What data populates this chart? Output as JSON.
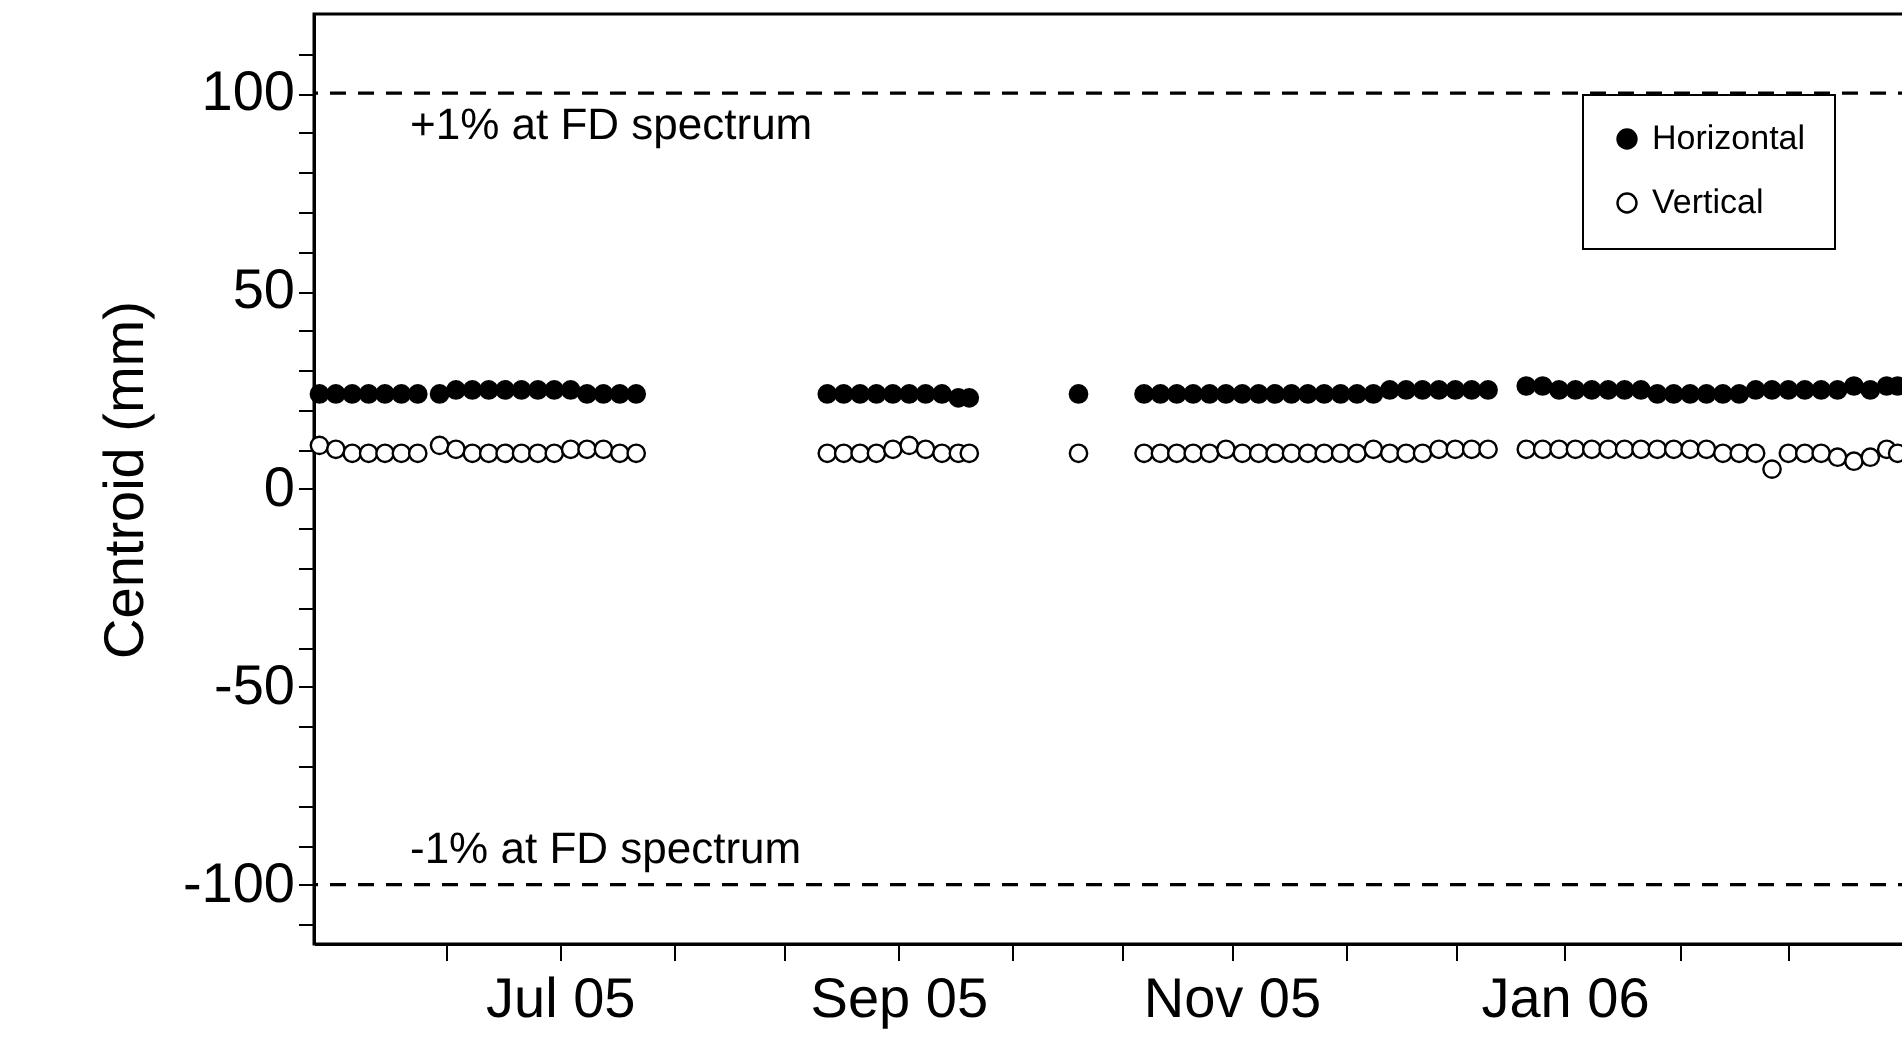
{
  "chart_data": {
    "type": "scatter",
    "ylabel": "Centroid (mm)",
    "x": [
      "2005-05-18",
      "2005-05-21",
      "2005-05-24",
      "2005-05-27",
      "2005-05-30",
      "2005-06-02",
      "2005-06-05",
      "2005-06-09",
      "2005-06-12",
      "2005-06-15",
      "2005-06-18",
      "2005-06-21",
      "2005-06-24",
      "2005-06-27",
      "2005-06-30",
      "2005-07-03",
      "2005-07-06",
      "2005-07-09",
      "2005-07-12",
      "2005-07-15",
      "2005-08-19",
      "2005-08-22",
      "2005-08-25",
      "2005-08-28",
      "2005-08-31",
      "2005-09-03",
      "2005-09-06",
      "2005-09-09",
      "2005-09-12",
      "2005-09-14",
      "2005-10-04",
      "2005-10-16",
      "2005-10-19",
      "2005-10-22",
      "2005-10-25",
      "2005-10-28",
      "2005-10-31",
      "2005-11-03",
      "2005-11-06",
      "2005-11-09",
      "2005-11-12",
      "2005-11-15",
      "2005-11-18",
      "2005-11-21",
      "2005-11-24",
      "2005-11-27",
      "2005-11-30",
      "2005-12-03",
      "2005-12-06",
      "2005-12-09",
      "2005-12-12",
      "2005-12-15",
      "2005-12-18",
      "2005-12-25",
      "2005-12-28",
      "2005-12-31",
      "2006-01-03",
      "2006-01-06",
      "2006-01-09",
      "2006-01-12",
      "2006-01-15",
      "2006-01-18",
      "2006-01-21",
      "2006-01-24",
      "2006-01-27",
      "2006-01-30",
      "2006-02-02",
      "2006-02-05",
      "2006-02-08",
      "2006-02-11",
      "2006-02-14",
      "2006-02-17",
      "2006-02-20",
      "2006-02-23",
      "2006-02-26",
      "2006-03-01",
      "2006-03-03"
    ],
    "series": [
      {
        "name": "Horizontal",
        "color": "#000000",
        "values": [
          24,
          24,
          24,
          24,
          24,
          24,
          24,
          24,
          25,
          25,
          25,
          25,
          25,
          25,
          25,
          25,
          24,
          24,
          24,
          24,
          24,
          24,
          24,
          24,
          24,
          24,
          24,
          24,
          23,
          23,
          24,
          24,
          24,
          24,
          24,
          24,
          24,
          24,
          24,
          24,
          24,
          24,
          24,
          24,
          24,
          24,
          25,
          25,
          25,
          25,
          25,
          25,
          25,
          26,
          26,
          25,
          25,
          25,
          25,
          25,
          25,
          24,
          24,
          24,
          24,
          24,
          24,
          25,
          25,
          25,
          25,
          25,
          25,
          26,
          25,
          26,
          26
        ]
      },
      {
        "name": "Vertical",
        "color": "#000000",
        "values": [
          11,
          10,
          9,
          9,
          9,
          9,
          9,
          11,
          10,
          9,
          9,
          9,
          9,
          9,
          9,
          10,
          10,
          10,
          9,
          9,
          9,
          9,
          9,
          9,
          10,
          11,
          10,
          9,
          9,
          9,
          9,
          9,
          9,
          9,
          9,
          9,
          10,
          9,
          9,
          9,
          9,
          9,
          9,
          9,
          9,
          10,
          9,
          9,
          9,
          10,
          10,
          10,
          10,
          10,
          10,
          10,
          10,
          10,
          10,
          10,
          10,
          10,
          10,
          10,
          10,
          9,
          9,
          9,
          5,
          9,
          9,
          9,
          8,
          7,
          8,
          10,
          9
        ]
      }
    ],
    "xlim": [
      "2005-05-17",
      "2006-03-06"
    ],
    "xticks": [
      {
        "value": "2005-06-10",
        "label": null
      },
      {
        "value": "2005-07-01",
        "label": "Jul 05"
      },
      {
        "value": "2005-07-22",
        "label": null
      },
      {
        "value": "2005-08-11",
        "label": null
      },
      {
        "value": "2005-09-01",
        "label": "Sep 05"
      },
      {
        "value": "2005-09-22",
        "label": null
      },
      {
        "value": "2005-10-12",
        "label": null
      },
      {
        "value": "2005-11-01",
        "label": "Nov 05"
      },
      {
        "value": "2005-11-22",
        "label": null
      },
      {
        "value": "2005-12-12",
        "label": null
      },
      {
        "value": "2006-01-01",
        "label": "Jan 06"
      },
      {
        "value": "2006-01-22",
        "label": null
      },
      {
        "value": "2006-02-11",
        "label": null
      }
    ],
    "ylim": [
      -115,
      120
    ],
    "yticks": [
      {
        "value": -110,
        "label": null
      },
      -100,
      {
        "value": -90,
        "label": null
      },
      {
        "value": -80,
        "label": null
      },
      {
        "value": -70,
        "label": null
      },
      {
        "value": -60,
        "label": null
      },
      -50,
      {
        "value": -40,
        "label": null
      },
      {
        "value": -30,
        "label": null
      },
      {
        "value": -20,
        "label": null
      },
      {
        "value": -10,
        "label": null
      },
      0,
      {
        "value": 10,
        "label": null
      },
      {
        "value": 20,
        "label": null
      },
      {
        "value": 30,
        "label": null
      },
      {
        "value": 40,
        "label": null
      },
      50,
      {
        "value": 60,
        "label": null
      },
      {
        "value": 70,
        "label": null
      },
      {
        "value": 80,
        "label": null
      },
      {
        "value": 90,
        "label": null
      },
      100,
      {
        "value": 110,
        "label": null
      }
    ],
    "ref_lines": [
      {
        "axis": "y",
        "value": 100,
        "label": "+1% at FD spectrum",
        "color": "#000000",
        "line_style": "dashed"
      },
      {
        "axis": "y",
        "value": -100,
        "label": "-1% at FD spectrum",
        "color": "#000000",
        "line_style": "dashed"
      }
    ],
    "legend": "top right",
    "marker": "circle",
    "grid": false
  }
}
